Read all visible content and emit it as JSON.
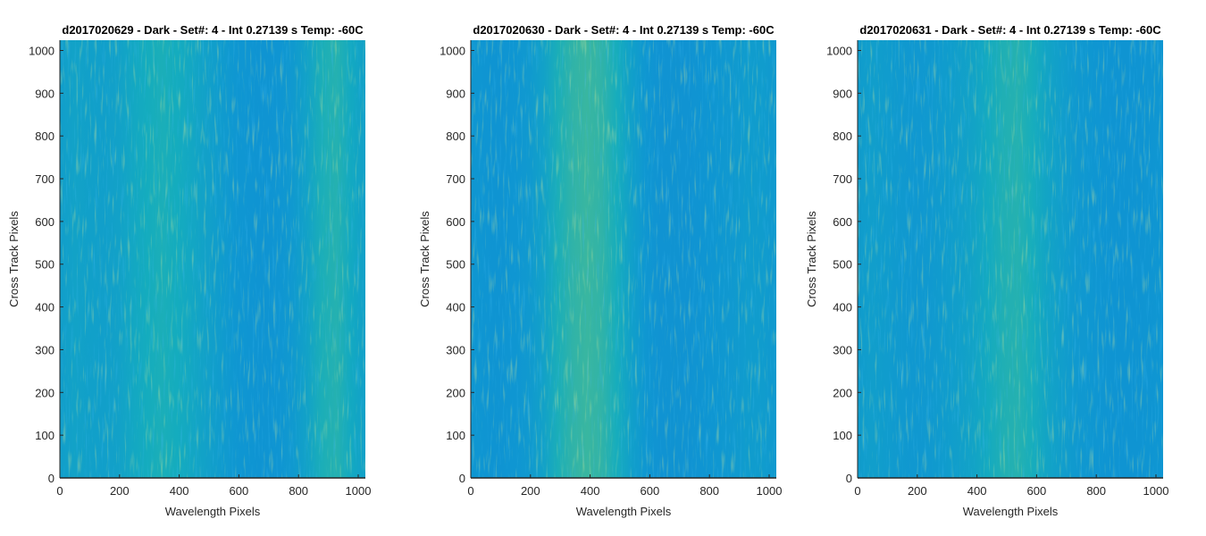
{
  "chart_data": [
    {
      "type": "heatmap",
      "title": "d2017020629 - Dark - Set#: 4 - Int 0.27139 s Temp: -60C",
      "xlabel": "Wavelength Pixels",
      "ylabel": "Cross Track Pixels",
      "xlim": [
        0,
        1024
      ],
      "ylim": [
        0,
        1024
      ],
      "xticks": [
        0,
        200,
        400,
        600,
        800,
        1000
      ],
      "yticks": [
        0,
        100,
        200,
        300,
        400,
        500,
        600,
        700,
        800,
        900,
        1000
      ],
      "colormap": "parula",
      "column_intensity": [
        0.42,
        0.46,
        0.44,
        0.43,
        0.45,
        0.5,
        0.55,
        0.58,
        0.55,
        0.5,
        0.45,
        0.4,
        0.36,
        0.34,
        0.33,
        0.34,
        0.38,
        0.46,
        0.58,
        0.62,
        0.52,
        0.44
      ]
    },
    {
      "type": "heatmap",
      "title": "d2017020630 - Dark - Set#: 4 - Int 0.27139 s Temp: -60C",
      "xlabel": "Wavelength Pixels",
      "ylabel": "Cross Track Pixels",
      "xlim": [
        0,
        1024
      ],
      "ylim": [
        0,
        1024
      ],
      "xticks": [
        0,
        200,
        400,
        600,
        800,
        1000
      ],
      "yticks": [
        0,
        100,
        200,
        300,
        400,
        500,
        600,
        700,
        800,
        900,
        1000
      ],
      "colormap": "parula",
      "column_intensity": [
        0.36,
        0.34,
        0.33,
        0.35,
        0.38,
        0.45,
        0.58,
        0.66,
        0.7,
        0.66,
        0.56,
        0.44,
        0.36,
        0.32,
        0.31,
        0.32,
        0.34,
        0.36,
        0.38,
        0.4,
        0.4,
        0.38
      ]
    },
    {
      "type": "heatmap",
      "title": "d2017020631 - Dark - Set#: 4 - Int 0.27139 s Temp: -60C",
      "xlabel": "Wavelength Pixels",
      "ylabel": "Cross Track Pixels",
      "xlim": [
        0,
        1024
      ],
      "ylim": [
        0,
        1024
      ],
      "xticks": [
        0,
        200,
        400,
        600,
        800,
        1000
      ],
      "yticks": [
        0,
        100,
        200,
        300,
        400,
        500,
        600,
        700,
        800,
        900,
        1000
      ],
      "colormap": "parula",
      "column_intensity": [
        0.4,
        0.42,
        0.4,
        0.38,
        0.37,
        0.38,
        0.4,
        0.43,
        0.47,
        0.53,
        0.6,
        0.62,
        0.56,
        0.48,
        0.42,
        0.38,
        0.36,
        0.34,
        0.33,
        0.33,
        0.34,
        0.35
      ]
    }
  ]
}
